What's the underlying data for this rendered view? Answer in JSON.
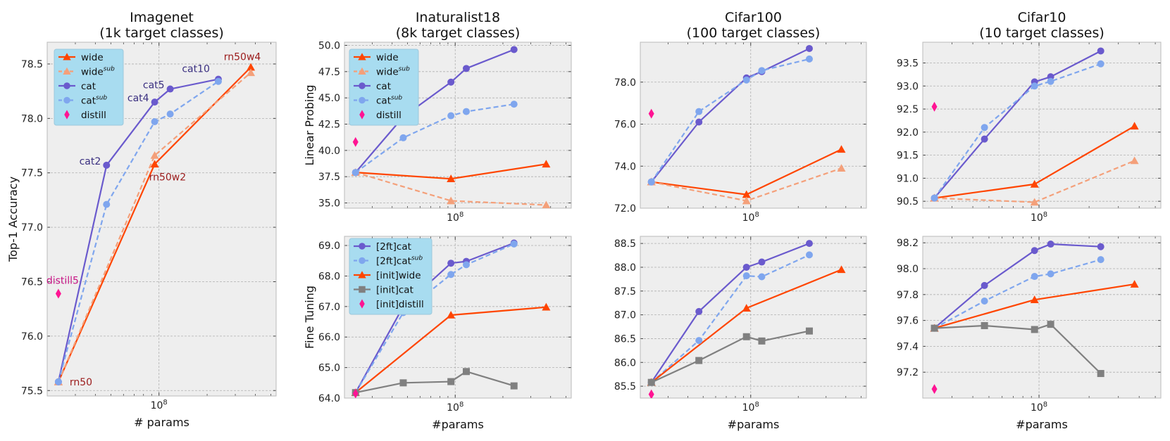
{
  "colors": {
    "wide": "#ff4500",
    "wide_sub": "#f4a07a",
    "cat": "#6a5acd",
    "cat_sub": "#7fa6ee",
    "distill": "#ff1493",
    "init_cat": "#808080",
    "legend_bg": "#a8dcf0",
    "panel_bg": "#eeeeee",
    "grid": "#b0b0b0",
    "label_wide": "#9b1c1c",
    "label_cat": "#3a2f80",
    "label_distill": "#c71585"
  },
  "chart_data": [
    {
      "id": "imagenet",
      "type": "line",
      "title": "Imagenet\n(1k target classes)",
      "xlabel": "# params",
      "ylabel": "Top-1 Accuracy",
      "xscale": "log",
      "xlim": [
        20000000,
        540000000
      ],
      "ylim": [
        75.45,
        78.7
      ],
      "xticks": [
        {
          "value": 100000000,
          "label": "10^8"
        }
      ],
      "yticks": [
        75.5,
        76.0,
        76.5,
        77.0,
        77.5,
        78.0,
        78.5
      ],
      "ytick_decimals": 1,
      "series": [
        {
          "key": "wide",
          "legend": "wide",
          "color_key": "wide",
          "dashed": false,
          "marker": "triangle",
          "x": [
            23500000,
            94000000,
            375000000
          ],
          "y": [
            75.58,
            77.58,
            78.47
          ]
        },
        {
          "key": "wide_sub",
          "legend": "wide",
          "legend_sup": "sub",
          "color_key": "wide_sub",
          "dashed": true,
          "marker": "triangle",
          "x": [
            23500000,
            94000000,
            375000000
          ],
          "y": [
            75.58,
            77.66,
            78.42
          ]
        },
        {
          "key": "cat",
          "legend": "cat",
          "color_key": "cat",
          "dashed": false,
          "marker": "circle",
          "x": [
            23500000,
            47000000,
            94000000,
            117500000,
            235000000
          ],
          "y": [
            75.58,
            77.57,
            78.15,
            78.27,
            78.36
          ]
        },
        {
          "key": "cat_sub",
          "legend": "cat",
          "legend_sup": "sub",
          "color_key": "cat_sub",
          "dashed": true,
          "marker": "circle",
          "x": [
            23500000,
            47000000,
            94000000,
            117500000,
            235000000
          ],
          "y": [
            75.58,
            77.21,
            77.97,
            78.04,
            78.34
          ]
        },
        {
          "key": "distill",
          "legend": "distill",
          "color_key": "distill",
          "line": false,
          "marker": "diamond",
          "x": [
            23500000
          ],
          "y": [
            76.39
          ]
        }
      ],
      "legend_order": [
        "wide",
        "wide_sub",
        "cat",
        "cat_sub",
        "distill"
      ],
      "annotations": [
        {
          "text": "rn50",
          "color_key": "label_wide",
          "x": 23500000,
          "y": 75.58,
          "dx": 16,
          "dy": 5,
          "anchor": "start"
        },
        {
          "text": "rn50w2",
          "color_key": "label_wide",
          "x": 94000000,
          "y": 77.58,
          "dx": -8,
          "dy": 23,
          "anchor": "start"
        },
        {
          "text": "rn50w4",
          "color_key": "label_wide",
          "x": 375000000,
          "y": 78.47,
          "dx": -12,
          "dy": -10,
          "anchor": "middle"
        },
        {
          "text": "cat2",
          "color_key": "label_cat",
          "x": 47000000,
          "y": 77.57,
          "dx": -8,
          "dy": -1,
          "anchor": "end"
        },
        {
          "text": "cat4",
          "color_key": "label_cat",
          "x": 94000000,
          "y": 78.15,
          "dx": -8,
          "dy": -1,
          "anchor": "end"
        },
        {
          "text": "cat5",
          "color_key": "label_cat",
          "x": 117500000,
          "y": 78.27,
          "dx": -8,
          "dy": -1,
          "anchor": "end"
        },
        {
          "text": "cat10",
          "color_key": "label_cat",
          "x": 235000000,
          "y": 78.36,
          "dx": -12,
          "dy": -10,
          "anchor": "end"
        },
        {
          "text": "distill5",
          "color_key": "label_distill",
          "x": 23500000,
          "y": 76.39,
          "dx": 6,
          "dy": -14,
          "anchor": "middle"
        }
      ]
    },
    {
      "id": "inat_lp",
      "type": "line",
      "title": "Inaturalist18\n(8k target classes)",
      "xlabel": "",
      "ylabel": "Linear Probing",
      "xscale": "log",
      "xlim": [
        20000000,
        540000000
      ],
      "ylim": [
        34.5,
        50.3
      ],
      "xticks": [
        {
          "value": 100000000,
          "label": "10^8"
        }
      ],
      "yticks": [
        35.0,
        37.5,
        40.0,
        42.5,
        45.0,
        47.5,
        50.0
      ],
      "ytick_decimals": 1,
      "series": [
        {
          "key": "wide",
          "legend": "wide",
          "color_key": "wide",
          "dashed": false,
          "marker": "triangle",
          "x": [
            23500000,
            94000000,
            375000000
          ],
          "y": [
            37.9,
            37.3,
            38.7
          ]
        },
        {
          "key": "wide_sub",
          "legend": "wide",
          "legend_sup": "sub",
          "color_key": "wide_sub",
          "dashed": true,
          "marker": "triangle",
          "x": [
            23500000,
            94000000,
            375000000
          ],
          "y": [
            37.9,
            35.2,
            34.8
          ]
        },
        {
          "key": "cat",
          "legend": "cat",
          "color_key": "cat",
          "dashed": false,
          "marker": "circle",
          "x": [
            23500000,
            47000000,
            94000000,
            117500000,
            235000000
          ],
          "y": [
            37.9,
            43.2,
            46.5,
            47.8,
            49.6
          ]
        },
        {
          "key": "cat_sub",
          "legend": "cat",
          "legend_sup": "sub",
          "color_key": "cat_sub",
          "dashed": true,
          "marker": "circle",
          "x": [
            23500000,
            47000000,
            94000000,
            117500000,
            235000000
          ],
          "y": [
            37.9,
            41.2,
            43.3,
            43.7,
            44.4
          ]
        },
        {
          "key": "distill",
          "legend": "distill",
          "color_key": "distill",
          "line": false,
          "marker": "diamond",
          "x": [
            23500000
          ],
          "y": [
            40.8
          ]
        }
      ],
      "legend_order": [
        "wide",
        "wide_sub",
        "cat",
        "cat_sub",
        "distill"
      ],
      "annotations": []
    },
    {
      "id": "cifar100_lp",
      "type": "line",
      "title": "Cifar100\n(100 target classes)",
      "xlabel": "",
      "ylabel": "",
      "xscale": "log",
      "xlim": [
        20000000,
        540000000
      ],
      "ylim": [
        72.0,
        79.9
      ],
      "xticks": [
        {
          "value": 100000000,
          "label": "10^8"
        }
      ],
      "yticks": [
        72.0,
        74.0,
        76.0,
        78.0
      ],
      "ytick_decimals": 1,
      "series": [
        {
          "key": "wide",
          "legend": "wide",
          "color_key": "wide",
          "dashed": false,
          "marker": "triangle",
          "x": [
            23500000,
            94000000,
            375000000
          ],
          "y": [
            73.25,
            72.65,
            74.8
          ]
        },
        {
          "key": "wide_sub",
          "legend": "wide",
          "legend_sup": "sub",
          "color_key": "wide_sub",
          "dashed": true,
          "marker": "triangle",
          "x": [
            23500000,
            94000000,
            375000000
          ],
          "y": [
            73.25,
            72.35,
            73.9
          ]
        },
        {
          "key": "cat",
          "legend": "cat",
          "color_key": "cat",
          "dashed": false,
          "marker": "circle",
          "x": [
            23500000,
            47000000,
            94000000,
            117500000,
            235000000
          ],
          "y": [
            73.25,
            76.1,
            78.2,
            78.5,
            79.6
          ]
        },
        {
          "key": "cat_sub",
          "legend": "cat",
          "legend_sup": "sub",
          "color_key": "cat_sub",
          "dashed": true,
          "marker": "circle",
          "x": [
            23500000,
            47000000,
            94000000,
            117500000,
            235000000
          ],
          "y": [
            73.25,
            76.6,
            78.1,
            78.55,
            79.1
          ]
        },
        {
          "key": "distill",
          "legend": "distill",
          "color_key": "distill",
          "line": false,
          "marker": "diamond",
          "x": [
            23500000
          ],
          "y": [
            76.5
          ]
        }
      ],
      "legend_order": [],
      "annotations": []
    },
    {
      "id": "cifar10_lp",
      "type": "line",
      "title": "Cifar10\n(10 target classes)",
      "xlabel": "",
      "ylabel": "",
      "xscale": "log",
      "xlim": [
        20000000,
        540000000
      ],
      "ylim": [
        90.35,
        93.95
      ],
      "xticks": [
        {
          "value": 100000000,
          "label": "10^8"
        }
      ],
      "yticks": [
        90.5,
        91.0,
        91.5,
        92.0,
        92.5,
        93.0,
        93.5
      ],
      "ytick_decimals": 1,
      "series": [
        {
          "key": "wide",
          "legend": "wide",
          "color_key": "wide",
          "dashed": false,
          "marker": "triangle",
          "x": [
            23500000,
            94000000,
            375000000
          ],
          "y": [
            90.57,
            90.87,
            92.13
          ]
        },
        {
          "key": "wide_sub",
          "legend": "wide",
          "legend_sup": "sub",
          "color_key": "wide_sub",
          "dashed": true,
          "marker": "triangle",
          "x": [
            23500000,
            94000000,
            375000000
          ],
          "y": [
            90.57,
            90.48,
            91.38
          ]
        },
        {
          "key": "cat",
          "legend": "cat",
          "color_key": "cat",
          "dashed": false,
          "marker": "circle",
          "x": [
            23500000,
            47000000,
            94000000,
            117500000,
            235000000
          ],
          "y": [
            90.57,
            91.85,
            93.09,
            93.2,
            93.76
          ]
        },
        {
          "key": "cat_sub",
          "legend": "cat",
          "legend_sup": "sub",
          "color_key": "cat_sub",
          "dashed": true,
          "marker": "circle",
          "x": [
            23500000,
            47000000,
            94000000,
            117500000,
            235000000
          ],
          "y": [
            90.57,
            92.1,
            93.0,
            93.1,
            93.48
          ]
        },
        {
          "key": "distill",
          "legend": "distill",
          "color_key": "distill",
          "line": false,
          "marker": "diamond",
          "x": [
            23500000
          ],
          "y": [
            92.55
          ]
        }
      ],
      "legend_order": [],
      "annotations": []
    },
    {
      "id": "inat_ft",
      "type": "line",
      "title": "",
      "xlabel": "#params",
      "ylabel": "Fine Tuning",
      "xscale": "log",
      "xlim": [
        20000000,
        540000000
      ],
      "ylim": [
        64.0,
        69.3
      ],
      "xticks": [
        {
          "value": 100000000,
          "label": "10^8"
        }
      ],
      "yticks": [
        64.0,
        65.0,
        66.0,
        67.0,
        68.0,
        69.0
      ],
      "ytick_decimals": 1,
      "series": [
        {
          "key": "ft_cat",
          "legend": "[2ft]cat",
          "color_key": "cat",
          "dashed": false,
          "marker": "circle",
          "x": [
            23500000,
            47000000,
            94000000,
            117500000,
            235000000
          ],
          "y": [
            64.18,
            67.0,
            68.42,
            68.48,
            69.08
          ]
        },
        {
          "key": "ft_cat_sub",
          "legend": "[2ft]cat",
          "legend_sup": "sub",
          "color_key": "cat_sub",
          "dashed": true,
          "marker": "circle",
          "x": [
            23500000,
            47000000,
            94000000,
            117500000,
            235000000
          ],
          "y": [
            64.18,
            66.8,
            68.05,
            68.37,
            69.05
          ]
        },
        {
          "key": "init_wide",
          "legend": "[init]wide",
          "color_key": "wide",
          "dashed": false,
          "marker": "triangle",
          "x": [
            23500000,
            94000000,
            375000000
          ],
          "y": [
            64.18,
            66.72,
            66.98
          ]
        },
        {
          "key": "init_cat",
          "legend": "[init]cat",
          "color_key": "init_cat",
          "dashed": false,
          "marker": "square",
          "x": [
            23500000,
            47000000,
            94000000,
            117500000,
            235000000
          ],
          "y": [
            64.18,
            64.5,
            64.54,
            64.87,
            64.4
          ]
        },
        {
          "key": "init_distill",
          "legend": "[init]distill",
          "color_key": "distill",
          "line": false,
          "marker": "diamond",
          "x": [
            23500000
          ],
          "y": [
            64.15
          ]
        }
      ],
      "legend_order": [
        "ft_cat",
        "ft_cat_sub",
        "init_wide",
        "init_cat",
        "init_distill"
      ],
      "annotations": []
    },
    {
      "id": "cifar100_ft",
      "type": "line",
      "title": "",
      "xlabel": "#params",
      "ylabel": "",
      "xscale": "log",
      "xlim": [
        20000000,
        540000000
      ],
      "ylim": [
        85.25,
        88.65
      ],
      "xticks": [
        {
          "value": 100000000,
          "label": "10^8"
        }
      ],
      "yticks": [
        85.5,
        86.0,
        86.5,
        87.0,
        87.5,
        88.0,
        88.5
      ],
      "ytick_decimals": 1,
      "series": [
        {
          "key": "ft_cat",
          "legend": "[2ft]cat",
          "color_key": "cat",
          "dashed": false,
          "marker": "circle",
          "x": [
            23500000,
            47000000,
            94000000,
            117500000,
            235000000
          ],
          "y": [
            85.58,
            87.07,
            88.0,
            88.11,
            88.5
          ]
        },
        {
          "key": "ft_cat_sub",
          "legend": "[2ft]cat",
          "legend_sup": "sub",
          "color_key": "cat_sub",
          "dashed": true,
          "marker": "circle",
          "x": [
            23500000,
            47000000,
            94000000,
            117500000,
            235000000
          ],
          "y": [
            85.58,
            86.46,
            87.82,
            87.8,
            88.26
          ]
        },
        {
          "key": "init_wide",
          "legend": "[init]wide",
          "color_key": "wide",
          "dashed": false,
          "marker": "triangle",
          "x": [
            23500000,
            94000000,
            375000000
          ],
          "y": [
            85.58,
            87.14,
            87.95
          ]
        },
        {
          "key": "init_cat",
          "legend": "[init]cat",
          "color_key": "init_cat",
          "dashed": false,
          "marker": "square",
          "x": [
            23500000,
            47000000,
            94000000,
            117500000,
            235000000
          ],
          "y": [
            85.58,
            86.04,
            86.54,
            86.45,
            86.66
          ]
        },
        {
          "key": "init_distill",
          "legend": "[init]distill",
          "color_key": "distill",
          "line": false,
          "marker": "diamond",
          "x": [
            23500000
          ],
          "y": [
            85.33
          ]
        }
      ],
      "legend_order": [],
      "annotations": []
    },
    {
      "id": "cifar10_ft",
      "type": "line",
      "title": "",
      "xlabel": "#params",
      "ylabel": "",
      "xscale": "log",
      "xlim": [
        20000000,
        540000000
      ],
      "ylim": [
        97.0,
        98.25
      ],
      "xticks": [
        {
          "value": 100000000,
          "label": "10^8"
        }
      ],
      "yticks": [
        97.2,
        97.4,
        97.6,
        97.8,
        98.0,
        98.2
      ],
      "ytick_decimals": 1,
      "series": [
        {
          "key": "ft_cat",
          "legend": "[2ft]cat",
          "color_key": "cat",
          "dashed": false,
          "marker": "circle",
          "x": [
            23500000,
            47000000,
            94000000,
            117500000,
            235000000
          ],
          "y": [
            97.54,
            97.87,
            98.14,
            98.19,
            98.17
          ]
        },
        {
          "key": "ft_cat_sub",
          "legend": "[2ft]cat",
          "legend_sup": "sub",
          "color_key": "cat_sub",
          "dashed": true,
          "marker": "circle",
          "x": [
            23500000,
            47000000,
            94000000,
            117500000,
            235000000
          ],
          "y": [
            97.54,
            97.75,
            97.94,
            97.96,
            98.07
          ]
        },
        {
          "key": "init_wide",
          "legend": "[init]wide",
          "color_key": "wide",
          "dashed": false,
          "marker": "triangle",
          "x": [
            23500000,
            94000000,
            375000000
          ],
          "y": [
            97.54,
            97.76,
            97.88
          ]
        },
        {
          "key": "init_cat",
          "legend": "[init]cat",
          "color_key": "init_cat",
          "dashed": false,
          "marker": "square",
          "x": [
            23500000,
            47000000,
            94000000,
            117500000,
            235000000
          ],
          "y": [
            97.54,
            97.56,
            97.53,
            97.57,
            97.19
          ]
        },
        {
          "key": "init_distill",
          "legend": "[init]distill",
          "color_key": "distill",
          "line": false,
          "marker": "diamond",
          "x": [
            23500000
          ],
          "y": [
            97.07
          ]
        }
      ],
      "legend_order": [],
      "annotations": []
    }
  ]
}
